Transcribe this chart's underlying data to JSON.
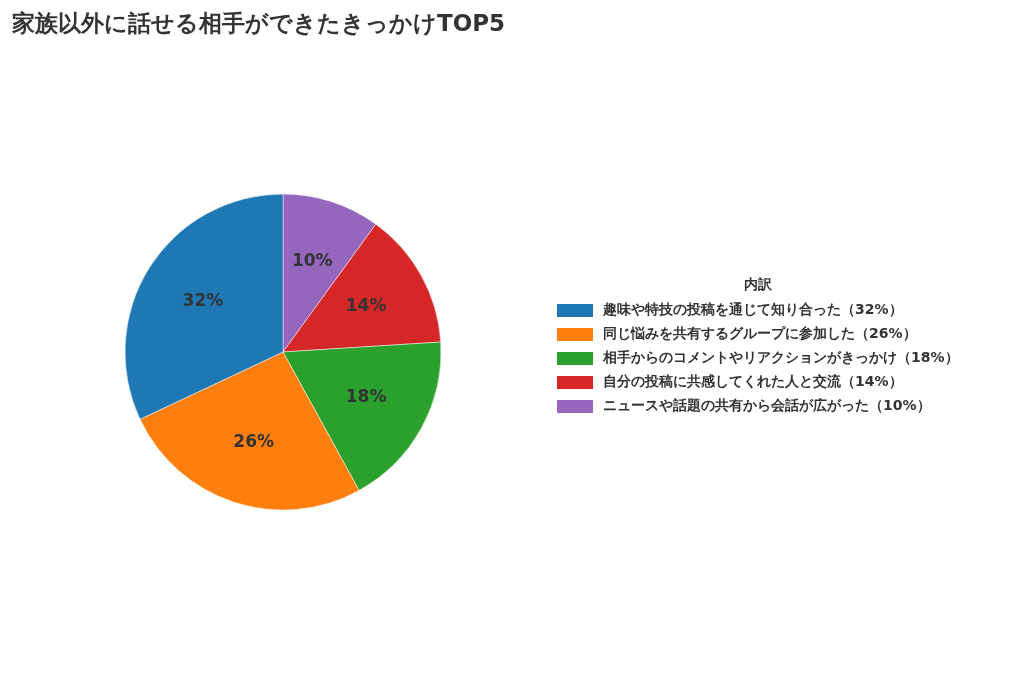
{
  "chart_data": {
    "type": "pie",
    "title": "家族以外に話せる相手ができたきっかけTOP5",
    "legend_title": "内訳",
    "categories": [
      "趣味や特技の投稿を通じて知り合った（32%）",
      "同じ悩みを共有するグループに参加した（26%）",
      "相手からのコメントやリアクションがきっかけ（18%）",
      "自分の投稿に共感してくれた人と交流（14%）",
      "ニュースや話題の共有から会話が広がった（10%）"
    ],
    "values": [
      32,
      26,
      18,
      14,
      10
    ],
    "colors": [
      "#1f77b4",
      "#ff7f0e",
      "#2ca02c",
      "#d62728",
      "#9467bd"
    ],
    "value_labels": [
      "32%",
      "26%",
      "18%",
      "14%",
      "10%"
    ],
    "legend": "right"
  }
}
